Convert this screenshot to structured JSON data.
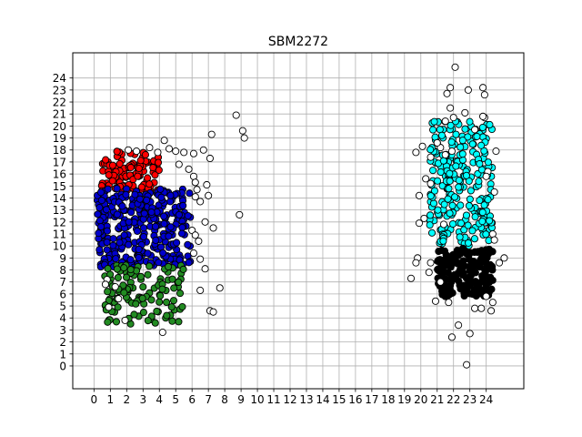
{
  "chart_data": {
    "type": "scatter",
    "title": "SBM2272",
    "xlabel": "",
    "ylabel": "",
    "xlim": [
      -1.3,
      26.3
    ],
    "ylim": [
      -1.9,
      26.1
    ],
    "xticks": [
      0,
      1,
      2,
      3,
      4,
      5,
      6,
      7,
      8,
      9,
      10,
      11,
      12,
      13,
      14,
      15,
      16,
      17,
      18,
      19,
      20,
      21,
      22,
      23,
      24
    ],
    "yticks": [
      0,
      1,
      2,
      3,
      4,
      5,
      6,
      7,
      8,
      9,
      10,
      11,
      12,
      13,
      14,
      15,
      16,
      17,
      18,
      19,
      20,
      21,
      22,
      23,
      24
    ],
    "grid": true,
    "legend": "none",
    "colors": {
      "red": "#ff0000",
      "blue": "#0000cc",
      "green": "#228b22",
      "cyan": "#00ffff",
      "black": "#000000",
      "white": "#ffffff",
      "grid": "#b0b0b0"
    },
    "clusters": [
      {
        "color_key": "red",
        "x_range": [
          0.4,
          4.0
        ],
        "y_range": [
          14.5,
          17.9
        ],
        "count": 110,
        "seed": 11
      },
      {
        "color_key": "blue",
        "x_range": [
          0.2,
          5.9
        ],
        "y_range": [
          8.2,
          14.8
        ],
        "count": 320,
        "seed": 23
      },
      {
        "color_key": "green",
        "x_range": [
          0.6,
          5.6
        ],
        "y_range": [
          3.5,
          8.4
        ],
        "count": 120,
        "seed": 37
      },
      {
        "color_key": "cyan",
        "x_range": [
          20.5,
          24.4
        ],
        "y_range": [
          10.0,
          20.4
        ],
        "count": 240,
        "seed": 41
      },
      {
        "color_key": "black",
        "x_range": [
          21.0,
          24.4
        ],
        "y_range": [
          5.7,
          9.8
        ],
        "count": 200,
        "seed": 53
      }
    ],
    "outliers": {
      "color_key": "white",
      "points": [
        [
          4.3,
          18.8
        ],
        [
          4.6,
          18.1
        ],
        [
          5.0,
          17.9
        ],
        [
          5.5,
          17.8
        ],
        [
          6.1,
          17.7
        ],
        [
          6.7,
          18.0
        ],
        [
          7.2,
          19.3
        ],
        [
          8.7,
          20.9
        ],
        [
          9.1,
          19.6
        ],
        [
          9.2,
          19.0
        ],
        [
          7.1,
          17.3
        ],
        [
          5.2,
          16.8
        ],
        [
          5.8,
          16.4
        ],
        [
          6.1,
          15.8
        ],
        [
          6.2,
          15.3
        ],
        [
          6.3,
          14.7
        ],
        [
          6.2,
          14.1
        ],
        [
          6.5,
          13.7
        ],
        [
          6.9,
          15.1
        ],
        [
          7.0,
          14.2
        ],
        [
          6.8,
          12.0
        ],
        [
          7.3,
          11.5
        ],
        [
          8.9,
          12.6
        ],
        [
          6.0,
          11.3
        ],
        [
          6.2,
          10.9
        ],
        [
          6.4,
          10.4
        ],
        [
          6.1,
          9.4
        ],
        [
          6.5,
          8.9
        ],
        [
          6.8,
          8.1
        ],
        [
          7.7,
          6.5
        ],
        [
          6.5,
          6.3
        ],
        [
          7.1,
          4.6
        ],
        [
          7.3,
          4.5
        ],
        [
          4.2,
          2.8
        ],
        [
          1.9,
          3.8
        ],
        [
          0.8,
          7.2
        ],
        [
          0.7,
          6.8
        ],
        [
          1.3,
          6.6
        ],
        [
          1.5,
          5.6
        ],
        [
          0.9,
          4.9
        ],
        [
          2.1,
          18.0
        ],
        [
          3.4,
          18.2
        ],
        [
          3.9,
          17.8
        ],
        [
          2.6,
          17.9
        ],
        [
          20.1,
          18.3
        ],
        [
          19.7,
          17.8
        ],
        [
          21.2,
          18.2
        ],
        [
          21.9,
          17.9
        ],
        [
          20.6,
          17.4
        ],
        [
          21.5,
          17.6
        ],
        [
          21.0,
          18.6
        ],
        [
          21.8,
          23.2
        ],
        [
          21.6,
          22.7
        ],
        [
          22.1,
          24.9
        ],
        [
          22.9,
          23.0
        ],
        [
          23.8,
          23.2
        ],
        [
          23.9,
          22.6
        ],
        [
          23.3,
          19.7
        ],
        [
          23.9,
          20.7
        ],
        [
          23.8,
          20.8
        ],
        [
          21.5,
          20.4
        ],
        [
          22.0,
          20.7
        ],
        [
          21.8,
          21.5
        ],
        [
          22.7,
          21.1
        ],
        [
          24.1,
          16.2
        ],
        [
          24.0,
          15.8
        ],
        [
          24.6,
          17.9
        ],
        [
          24.5,
          14.5
        ],
        [
          24.4,
          11.0
        ],
        [
          24.5,
          10.5
        ],
        [
          20.3,
          15.6
        ],
        [
          20.6,
          15.2
        ],
        [
          19.9,
          14.2
        ],
        [
          20.2,
          12.3
        ],
        [
          19.9,
          11.9
        ],
        [
          19.8,
          9.0
        ],
        [
          19.7,
          8.6
        ],
        [
          20.5,
          7.8
        ],
        [
          20.6,
          8.6
        ],
        [
          19.4,
          7.3
        ],
        [
          21.2,
          7.0
        ],
        [
          20.9,
          5.4
        ],
        [
          21.7,
          5.3
        ],
        [
          22.3,
          3.4
        ],
        [
          21.9,
          2.4
        ],
        [
          23.0,
          2.7
        ],
        [
          23.3,
          4.8
        ],
        [
          23.7,
          4.8
        ],
        [
          24.3,
          4.6
        ],
        [
          24.4,
          5.3
        ],
        [
          24.0,
          5.8
        ],
        [
          24.8,
          8.6
        ],
        [
          25.1,
          9.0
        ],
        [
          22.8,
          0.1
        ],
        [
          21.4,
          11.8
        ]
      ]
    }
  }
}
